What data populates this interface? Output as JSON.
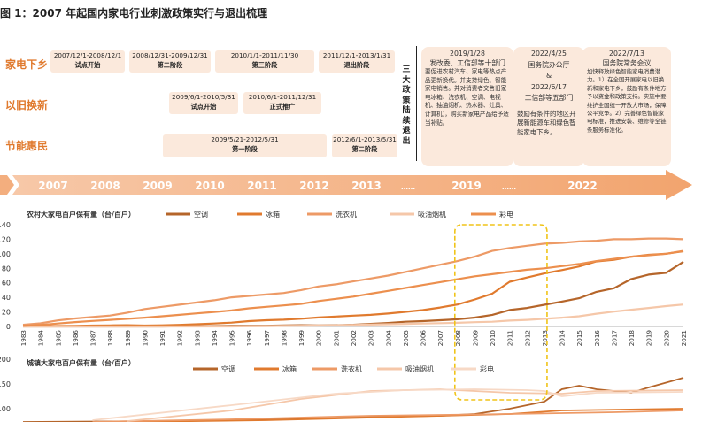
{
  "title": "图 1：2007 年起国内家电行业刺激政策实行与退出梳理",
  "policy_rows": [
    {
      "label": "家电下乡",
      "phases": [
        {
          "dates": "2007/12/1-2008/12/1",
          "stage": "试点开始"
        },
        {
          "dates": "2008/12/31-2009/12/31",
          "stage": "第二阶段"
        },
        {
          "dates": "2010/1/1-2011/11/30",
          "stage": "第三阶段"
        },
        {
          "dates": "2011/12/1-2013/1/31",
          "stage": "退出阶段"
        }
      ]
    },
    {
      "label": "以旧换新",
      "phases": [
        {
          "dates": "2009/6/1-2010/5/31",
          "stage": "试点开始"
        },
        {
          "dates": "2010/6/1-2011/12/31",
          "stage": "正式推广"
        }
      ]
    },
    {
      "label": "节能惠民",
      "phases": [
        {
          "dates": "2009/5/21-2012/5/31",
          "stage": "第一阶段"
        },
        {
          "dates": "2012/6/1-2013/5/31",
          "stage": "第二阶段"
        }
      ]
    }
  ],
  "exit_label": "三大政策陆续退出",
  "recent_policies": [
    {
      "head": "2019/1/28\n发改委、工信部等十部门",
      "body": "要促进农村汽车、家电等热点产品更新换代。并支持绿色、智能家电销售。并对消费者交售旧家电冰箱、洗衣机、空调、电视机、抽油烟机、热水器、灶具、计算机)，购买新家电产品给予适当补贴。"
    },
    {
      "head": "2022/4/25\n国务院办公厅\n&\n2022/6/17\n工信部等五部门",
      "body": "鼓励有条件的地区开展新能源车和绿色智能家电下乡。"
    },
    {
      "head": "2022/7/13\n国务院常务会议",
      "body": "加快释放绿色智能家电消费潜力。1）在全国开展家电以旧换新和家电下乡，鼓励有条件地方予以资金和政策支持。实施中要维护全国统一开放大市场，保障公平竞争。2）完善绿色智能家电标准，推进安装、维修等全链条服务标准化。"
    }
  ],
  "timeline_years": [
    "2007",
    "2008",
    "2009",
    "2010",
    "2011",
    "2012",
    "2013",
    "……",
    "2019",
    "……",
    "2022"
  ],
  "chart_data": [
    {
      "type": "line",
      "title": "农村大家电百户保有量（台/百户）",
      "x": [
        "1983",
        "1984",
        "1985",
        "1986",
        "1987",
        "1988",
        "1989",
        "1990",
        "1991",
        "1992",
        "1993",
        "1994",
        "1995",
        "1996",
        "1997",
        "1998",
        "1999",
        "2000",
        "2001",
        "2002",
        "2003",
        "2004",
        "2005",
        "2006",
        "2007",
        "2008",
        "2009",
        "2010",
        "2011",
        "2012",
        "2013",
        "2014",
        "2015",
        "2016",
        "2017",
        "2018",
        "2019",
        "2020",
        "2021"
      ],
      "y_ticks": [
        "0",
        "20",
        "40",
        "60",
        "80",
        "100",
        "120",
        "140"
      ],
      "ylim": [
        0,
        140
      ],
      "series": [
        {
          "name": "空调",
          "color": "#b5652a",
          "values": [
            0,
            0,
            0,
            0,
            0,
            0,
            0,
            0,
            0,
            0.2,
            0.3,
            0.5,
            0.7,
            0.9,
            1.0,
            1.3,
            1.7,
            1.3,
            1.7,
            2.3,
            3.5,
            4.7,
            6.4,
            7.3,
            8.5,
            9.8,
            12.2,
            16.0,
            22.6,
            25.4,
            29.8,
            34.2,
            38.8,
            47.6,
            52.6,
            65.2,
            71.3,
            73.8,
            89.0
          ]
        },
        {
          "name": "冰箱",
          "color": "#e07a2e",
          "values": [
            0.2,
            0.3,
            0.6,
            0.8,
            1.2,
            1.5,
            1.7,
            1.2,
            1.6,
            2.2,
            3.1,
            4.0,
            5.2,
            7.3,
            8.5,
            9.3,
            10.6,
            12.3,
            13.6,
            14.8,
            15.9,
            17.8,
            20.1,
            22.5,
            26.1,
            30.2,
            37.1,
            45.2,
            61.5,
            67.3,
            72.9,
            77.6,
            82.6,
            89.5,
            91.7,
            95.9,
            98.6,
            100.1,
            103.5
          ]
        },
        {
          "name": "洗衣机",
          "color": "#ed9a66",
          "values": [
            2.3,
            4.3,
            8.3,
            11,
            13,
            15,
            19,
            24,
            27,
            30,
            33,
            36,
            40,
            42,
            44,
            46,
            50,
            55,
            58,
            62,
            66,
            70,
            75,
            80,
            85,
            90,
            96,
            104,
            108,
            111,
            114,
            115,
            117,
            118,
            120,
            120,
            121,
            121,
            120
          ]
        },
        {
          "name": "吸油烟机",
          "color": "#f5c7a9",
          "values": [
            0,
            0,
            0,
            0,
            0,
            0,
            0,
            0,
            0,
            0,
            0,
            0,
            0,
            0.3,
            0.5,
            0.8,
            1.0,
            1.2,
            1.5,
            2.0,
            2.5,
            3.0,
            3.5,
            4.0,
            4.5,
            5.0,
            5.8,
            6.5,
            8.0,
            9.0,
            10.5,
            12.0,
            14.0,
            17.5,
            20.4,
            23.0,
            25.5,
            28.0,
            30.2
          ]
        },
        {
          "name": "彩电",
          "color": "#ec8f4e",
          "values": [
            0.8,
            2.0,
            4.0,
            6.0,
            7.5,
            9.0,
            10.5,
            12.0,
            14.0,
            16.0,
            18.0,
            20.0,
            22.0,
            25.0,
            27.0,
            29.0,
            31.0,
            35.0,
            38.0,
            41.0,
            45.0,
            49.0,
            53.0,
            57.0,
            61.0,
            65.0,
            69.0,
            72.0,
            75.0,
            78.0,
            80.0,
            83.0,
            86.0,
            90.0,
            93.0,
            96.0,
            98.0,
            100.0,
            104.0
          ]
        }
      ]
    },
    {
      "type": "line",
      "title": "城镇大家电百户保有量（台/百户）",
      "y_ticks": [
        "200",
        "150",
        "100"
      ],
      "legend": [
        "空调",
        "冰箱",
        "洗衣机",
        "吸油烟机",
        "彩电"
      ]
    }
  ],
  "highlight_range": [
    "2008",
    "2013"
  ]
}
